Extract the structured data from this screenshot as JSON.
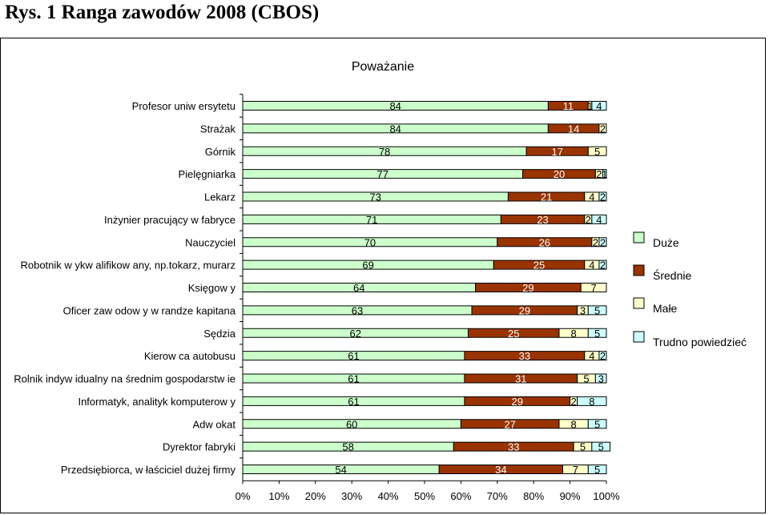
{
  "heading": "Rys. 1  Ranga zawodów 2008 (CBOS)",
  "chart_data": {
    "type": "bar",
    "stacked": true,
    "orientation": "horizontal",
    "percent_scale": true,
    "title": "Poważanie",
    "categories": [
      "Profesor uniw ersytetu",
      "Strażak",
      "Górnik",
      "Pielęgniarka",
      "Lekarz",
      "Inżynier pracujący w fabryce",
      "Nauczyciel",
      "Robotnik w ykw alifikow any, np.tokarz, murarz",
      "Księgow y",
      "Oficer zaw odow y w randze kapitana",
      "Sędzia",
      "Kierow ca autobusu",
      "Rolnik indyw idualny na średnim gospodarstw ie",
      "Informatyk, analityk komputerow y",
      "Adw okat",
      "Dyrektor fabryki",
      "Przedsiębiorca, w łaściciel dużej firmy"
    ],
    "series": [
      {
        "name": "Duże",
        "color": "#ccffcc",
        "values": [
          84,
          84,
          78,
          77,
          73,
          71,
          70,
          69,
          64,
          63,
          62,
          61,
          61,
          61,
          60,
          58,
          54
        ]
      },
      {
        "name": "Średnie",
        "color": "#993300",
        "values": [
          11,
          14,
          17,
          20,
          21,
          23,
          26,
          25,
          29,
          29,
          25,
          33,
          31,
          29,
          27,
          33,
          34
        ]
      },
      {
        "name": "Małe",
        "color": "#ffffcc",
        "values": [
          1,
          2,
          5,
          2,
          4,
          2,
          2,
          4,
          7,
          3,
          8,
          4,
          5,
          2,
          8,
          5,
          7
        ]
      },
      {
        "name": "Trudno powiedzieć",
        "color": "#ccffff",
        "values": [
          4,
          0,
          0,
          1,
          2,
          4,
          2,
          2,
          0,
          5,
          5,
          2,
          3,
          8,
          5,
          5,
          5
        ]
      }
    ],
    "xlim": [
      0,
      100
    ],
    "x_ticks": [
      "0%",
      "10%",
      "20%",
      "30%",
      "40%",
      "50%",
      "60%",
      "70%",
      "80%",
      "90%",
      "100%"
    ],
    "legend_position": "right",
    "grid": false
  }
}
